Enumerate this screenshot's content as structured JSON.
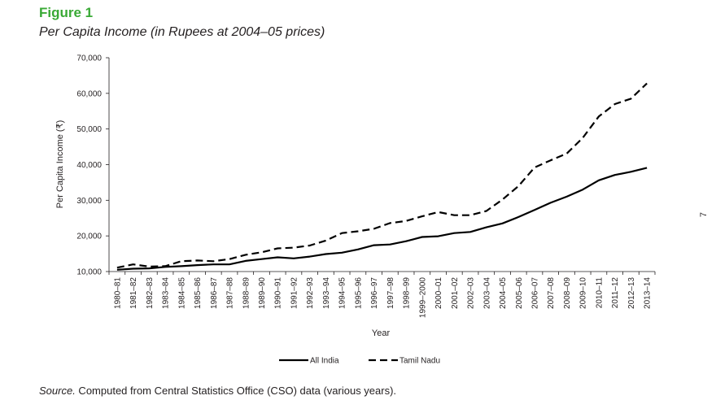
{
  "figure_label": "Figure 1",
  "figure_title": "Per Capita Income (in Rupees at 2004–05 prices)",
  "source_label": "Source.",
  "source_text": " Computed from Central Statistics Office (CSO) data (various years).",
  "page_number": "7",
  "chart_data": {
    "type": "line",
    "xlabel": "Year",
    "ylabel": "Per Capita Income (₹)",
    "ylim": [
      10000,
      70000
    ],
    "yticks": [
      10000,
      20000,
      30000,
      40000,
      50000,
      60000,
      70000
    ],
    "ytick_labels": [
      "10,000",
      "20,000",
      "30,000",
      "40,000",
      "50,000",
      "60,000",
      "70,000"
    ],
    "grid": false,
    "legend_position": "bottom-center",
    "categories": [
      "1980–81",
      "1981–82",
      "1982–83",
      "1983–84",
      "1984–85",
      "1985–86",
      "1986–87",
      "1987–88",
      "1988–89",
      "1989–90",
      "1990–91",
      "1991–92",
      "1992–93",
      "1993–94",
      "1994–95",
      "1995–96",
      "1996–97",
      "1997–98",
      "1998–99",
      "1999–2000",
      "2000–01",
      "2001–02",
      "2002–03",
      "2003–04",
      "2004–05",
      "2005–06",
      "2006–07",
      "2007–08",
      "2008–09",
      "2009–10",
      "2010–11",
      "2011–12",
      "2012–13",
      "2013–14"
    ],
    "series": [
      {
        "name": "All India",
        "style": "solid",
        "color": "#000000",
        "values": [
          10500,
          10800,
          10900,
          11300,
          11500,
          11800,
          12000,
          12000,
          13000,
          13500,
          14000,
          13700,
          14200,
          14900,
          15300,
          16200,
          17400,
          17600,
          18500,
          19700,
          19900,
          20800,
          21100,
          22400,
          23500,
          25300,
          27300,
          29300,
          31000,
          33000,
          35600,
          37100,
          38000,
          39100
        ]
      },
      {
        "name": "Tamil Nadu",
        "style": "dashed",
        "color": "#000000",
        "values": [
          11100,
          12000,
          11400,
          11500,
          12900,
          13100,
          12900,
          13500,
          14700,
          15400,
          16500,
          16700,
          17300,
          18700,
          20800,
          21300,
          22000,
          23600,
          24200,
          25500,
          26700,
          25800,
          25800,
          27000,
          30200,
          34000,
          39200,
          41200,
          43100,
          47500,
          53500,
          57000,
          58500,
          62800
        ]
      }
    ]
  }
}
